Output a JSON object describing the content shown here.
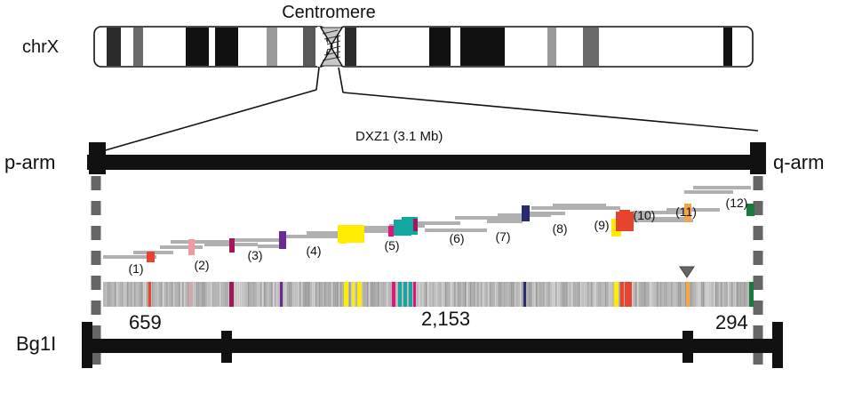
{
  "labels": {
    "centromere": "Centromere",
    "chromosome": "chrX",
    "region": "DXZ1 (3.1 Mb)",
    "p_arm": "p-arm",
    "q_arm": "q-arm",
    "enzyme": "Bg1I"
  },
  "fragment_sizes": [
    "659",
    "2,153",
    "294"
  ],
  "contig_labels": [
    "(1)",
    "(2)",
    "(3)",
    "(4)",
    "(5)",
    "(6)",
    "(7)",
    "(8)",
    "(9)",
    "(10)",
    "(11)",
    "(12)"
  ],
  "colors": {
    "band_dark": "#1a1a1a",
    "band_mid": "#6a6a6a",
    "band_light": "#9a9a9a",
    "read_grey": "#b0b0b0",
    "red": "#e8432e",
    "pink": "#f09aa0",
    "maroon": "#a0185a",
    "purple": "#6a2a92",
    "yellow": "#ffec00",
    "magenta": "#e0147a",
    "teal": "#12a7a0",
    "navy": "#2a2a6e",
    "orange": "#f5a640",
    "green": "#157a3c",
    "marker_grey": "#666666"
  }
}
